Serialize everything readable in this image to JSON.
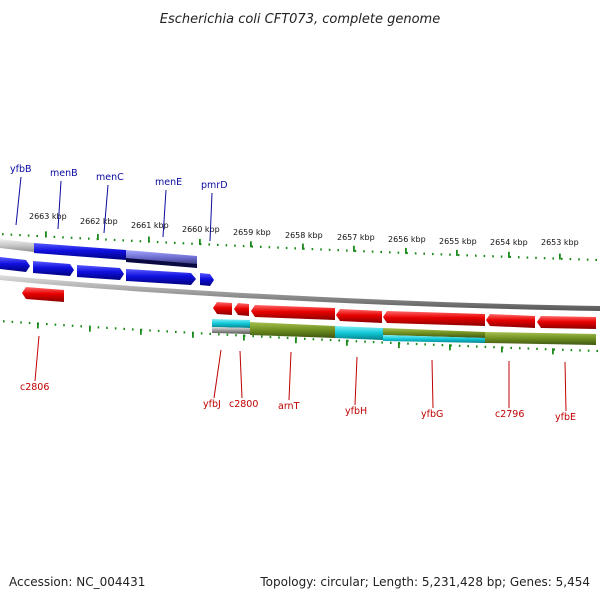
{
  "title": "Escherichia coli CFT073, complete genome",
  "footer": {
    "accession": "Accession: NC_004431",
    "summary": "Topology: circular; Length: 5,231,428 bp; Genes: 5,454"
  },
  "ruler_labels": [
    "2663 kbp",
    "2662 kbp",
    "2661 kbp",
    "2660 kbp",
    "2659 kbp",
    "2658 kbp",
    "2657 kbp",
    "2656 kbp",
    "2655 kbp",
    "2654 kbp",
    "2653 kbp"
  ],
  "top_gene_labels": [
    "yfbB",
    "menB",
    "menC",
    "menE",
    "pmrD"
  ],
  "bottom_gene_labels": [
    "c2806",
    "yfbJ",
    "c2800",
    "arnT",
    "yfbH",
    "yfbG",
    "c2796",
    "yfbE"
  ],
  "colors": {
    "forward_gene": "#1010e0",
    "reverse_gene": "#e00000",
    "tick": "#1a8a1a",
    "backbone": "#888888",
    "feature_cyan": "#10c8d8",
    "feature_olive": "#6f8f20",
    "top_label": "#0a0aa0",
    "bottom_label": "#c00000"
  }
}
